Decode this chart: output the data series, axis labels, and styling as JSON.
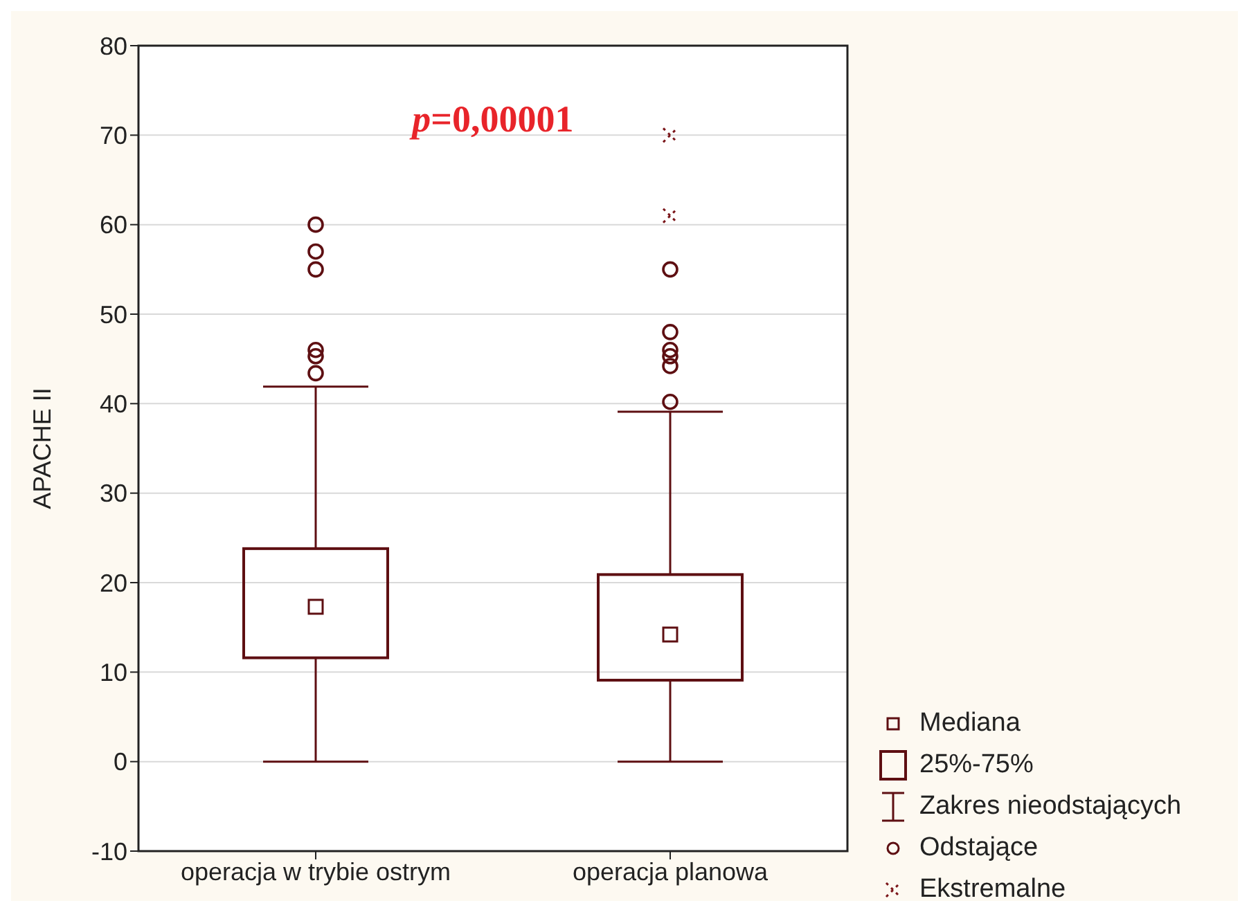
{
  "chart_data": {
    "type": "box",
    "ylabel": "APACHE II",
    "categories": [
      "operacja w trybie ostrym",
      "operacja planowa"
    ],
    "series": [
      {
        "type": "box",
        "color": "#5e0f12",
        "boxes": [
          {
            "low": 0,
            "q1": 11.6,
            "median": 17.3,
            "q3": 23.8,
            "high": 41.9,
            "outliers": [
              60,
              57,
              55,
              46,
              45.3,
              43.4
            ]
          },
          {
            "low": 0,
            "q1": 9.1,
            "median": 14.2,
            "q3": 20.9,
            "high": 39.1,
            "outliers": [
              55,
              48,
              46,
              45.3,
              44.2,
              40.2
            ]
          }
        ]
      },
      {
        "type": "scatter",
        "name": "Ekstremalne",
        "color": "#7a1418",
        "marker": "cross",
        "x": [
          "operacja planowa",
          "operacja planowa"
        ],
        "values": [
          70,
          61
        ]
      }
    ],
    "ylim": [
      -10,
      80
    ],
    "yticks": [
      -10,
      0,
      10,
      20,
      30,
      40,
      50,
      60,
      70,
      80
    ],
    "grid": "y",
    "legend": "bottom right",
    "annotations": [
      "p=0,00001",
      "Mediana",
      "25%-75%",
      "Zakres nieodstających",
      "Odstające"
    ]
  }
}
